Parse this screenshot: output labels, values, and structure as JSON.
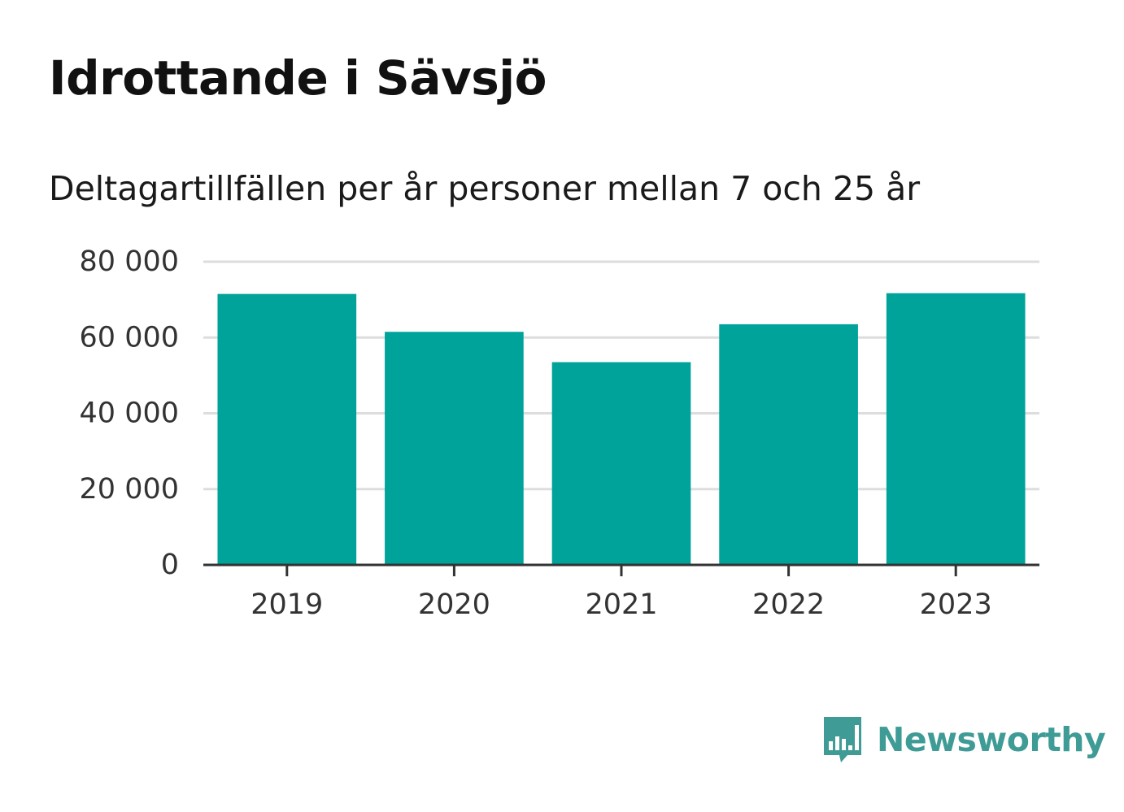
{
  "chart_data": {
    "type": "bar",
    "title": "Idrottande i Sävsjö",
    "subtitle": "Deltagartillfällen per år personer mellan 7 och 25 år",
    "categories": [
      "2019",
      "2020",
      "2021",
      "2022",
      "2023"
    ],
    "values": [
      71500,
      61500,
      53500,
      63500,
      71700
    ],
    "ylim": [
      0,
      80000
    ],
    "yticks": [
      0,
      20000,
      40000,
      60000,
      80000
    ],
    "ytick_labels": [
      "0",
      "20 000",
      "40 000",
      "60 000",
      "80 000"
    ],
    "xlabel": "",
    "ylabel": "",
    "grid": true,
    "legend": "none",
    "colors": {
      "bar": "#00a39a",
      "grid": "#dddddd",
      "axis": "#333333"
    }
  },
  "brand": {
    "name": "Newsworthy",
    "logo_icon": "speech-bubble-bar-chart-icon",
    "color": "#3f9b95"
  }
}
